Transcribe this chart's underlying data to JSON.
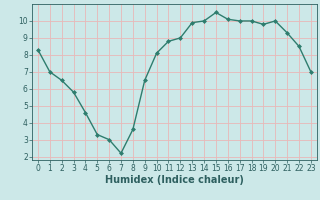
{
  "x": [
    0,
    1,
    2,
    3,
    4,
    5,
    6,
    7,
    8,
    9,
    10,
    11,
    12,
    13,
    14,
    15,
    16,
    17,
    18,
    19,
    20,
    21,
    22,
    23
  ],
  "y": [
    8.3,
    7.0,
    6.5,
    5.8,
    4.6,
    3.3,
    3.0,
    2.2,
    3.6,
    6.5,
    8.1,
    8.8,
    9.0,
    9.9,
    10.0,
    10.5,
    10.1,
    10.0,
    10.0,
    9.8,
    10.0,
    9.3,
    8.5,
    7.0
  ],
  "line_color": "#2e7d6e",
  "marker": "D",
  "marker_size": 2.0,
  "bg_color": "#cce8e8",
  "grid_color": "#e8b8b8",
  "xlabel": "Humidex (Indice chaleur)",
  "xlabel_fontsize": 7,
  "ylim": [
    1.8,
    11.0
  ],
  "xlim": [
    -0.5,
    23.5
  ],
  "yticks": [
    2,
    3,
    4,
    5,
    6,
    7,
    8,
    9,
    10
  ],
  "xticks": [
    0,
    1,
    2,
    3,
    4,
    5,
    6,
    7,
    8,
    9,
    10,
    11,
    12,
    13,
    14,
    15,
    16,
    17,
    18,
    19,
    20,
    21,
    22,
    23
  ],
  "tick_color": "#2e6060",
  "tick_fontsize": 5.5,
  "spine_color": "#2e6060",
  "linewidth": 1.0
}
